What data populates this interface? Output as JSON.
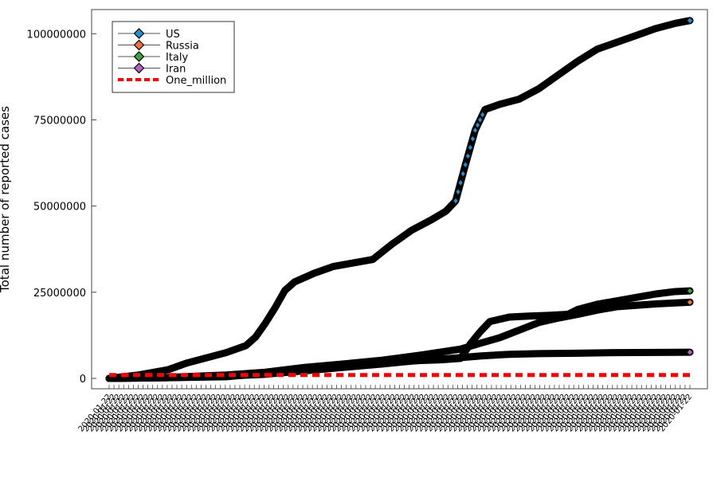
{
  "chart_data": {
    "type": "line",
    "ylabel": "Total number of reported cases",
    "ylim": [
      -3000000,
      107000000
    ],
    "y_ticks": [
      0,
      25000000,
      50000000,
      75000000,
      100000000
    ],
    "y_tick_labels": [
      "0",
      "25000000",
      "50000000",
      "75000000",
      "100000000"
    ],
    "x_tick_label_text": "2020-01-22",
    "grid": false,
    "legend_position": "top-left",
    "series": [
      {
        "name": "US",
        "color": "#1f8fd6",
        "marker": "diamond",
        "values": [
          [
            0,
            0
          ],
          [
            30,
            1000000
          ],
          [
            60,
            2500000
          ],
          [
            80,
            4500000
          ],
          [
            100,
            6000000
          ],
          [
            120,
            7500000
          ],
          [
            140,
            9500000
          ],
          [
            150,
            12000000
          ],
          [
            160,
            16000000
          ],
          [
            170,
            20500000
          ],
          [
            180,
            25500000
          ],
          [
            190,
            28000000
          ],
          [
            210,
            30500000
          ],
          [
            230,
            32500000
          ],
          [
            250,
            33500000
          ],
          [
            270,
            34500000
          ],
          [
            290,
            39000000
          ],
          [
            310,
            43000000
          ],
          [
            330,
            46000000
          ],
          [
            345,
            48500000
          ],
          [
            355,
            51500000
          ],
          [
            365,
            62000000
          ],
          [
            375,
            72000000
          ],
          [
            385,
            78000000
          ],
          [
            400,
            79500000
          ],
          [
            420,
            81000000
          ],
          [
            440,
            84000000
          ],
          [
            460,
            88000000
          ],
          [
            480,
            92000000
          ],
          [
            500,
            95500000
          ],
          [
            520,
            97500000
          ],
          [
            540,
            99500000
          ],
          [
            560,
            101500000
          ],
          [
            580,
            103000000
          ],
          [
            595,
            103800000
          ]
        ]
      },
      {
        "name": "Russia",
        "color": "#e8743b",
        "marker": "diamond",
        "values": [
          [
            0,
            0
          ],
          [
            60,
            300000
          ],
          [
            120,
            1000000
          ],
          [
            160,
            1800000
          ],
          [
            200,
            3200000
          ],
          [
            240,
            4200000
          ],
          [
            280,
            5300000
          ],
          [
            320,
            6800000
          ],
          [
            360,
            8500000
          ],
          [
            380,
            10200000
          ],
          [
            400,
            11800000
          ],
          [
            420,
            14000000
          ],
          [
            440,
            16200000
          ],
          [
            460,
            17500000
          ],
          [
            480,
            18600000
          ],
          [
            500,
            19800000
          ],
          [
            520,
            20800000
          ],
          [
            540,
            21200000
          ],
          [
            560,
            21600000
          ],
          [
            580,
            21900000
          ],
          [
            595,
            22100000
          ]
        ]
      },
      {
        "name": "Italy",
        "color": "#3da13c",
        "marker": "diamond",
        "values": [
          [
            0,
            0
          ],
          [
            60,
            200000
          ],
          [
            120,
            500000
          ],
          [
            160,
            1500000
          ],
          [
            200,
            3000000
          ],
          [
            240,
            3500000
          ],
          [
            260,
            4200000
          ],
          [
            300,
            5000000
          ],
          [
            340,
            5400000
          ],
          [
            360,
            5800000
          ],
          [
            370,
            10000000
          ],
          [
            380,
            13500000
          ],
          [
            390,
            16500000
          ],
          [
            410,
            17800000
          ],
          [
            430,
            18100000
          ],
          [
            450,
            18300000
          ],
          [
            470,
            18600000
          ],
          [
            480,
            20000000
          ],
          [
            500,
            21500000
          ],
          [
            520,
            22500000
          ],
          [
            540,
            23500000
          ],
          [
            560,
            24500000
          ],
          [
            580,
            25200000
          ],
          [
            595,
            25400000
          ]
        ]
      },
      {
        "name": "Iran",
        "color": "#b85fc4",
        "marker": "diamond",
        "values": [
          [
            0,
            0
          ],
          [
            60,
            200000
          ],
          [
            120,
            700000
          ],
          [
            160,
            1200000
          ],
          [
            200,
            2200000
          ],
          [
            240,
            3200000
          ],
          [
            280,
            4200000
          ],
          [
            320,
            5300000
          ],
          [
            350,
            5800000
          ],
          [
            380,
            6500000
          ],
          [
            410,
            7000000
          ],
          [
            440,
            7200000
          ],
          [
            480,
            7300000
          ],
          [
            520,
            7500000
          ],
          [
            560,
            7550000
          ],
          [
            595,
            7600000
          ]
        ]
      },
      {
        "name": "One_million",
        "color": "#ff0000",
        "line_style": "dashed",
        "values": [
          [
            0,
            1000000
          ],
          [
            595,
            1000000
          ]
        ]
      }
    ]
  }
}
